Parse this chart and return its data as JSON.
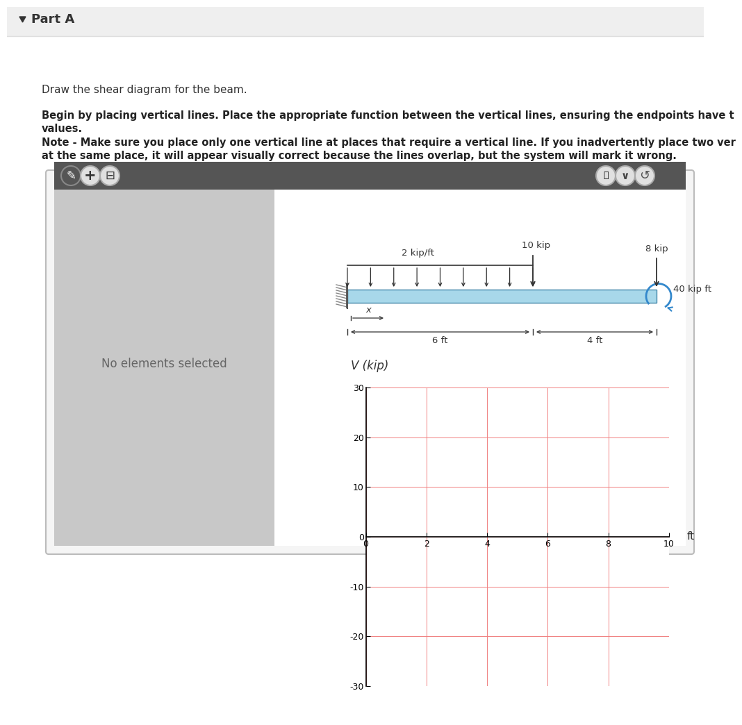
{
  "page_bg": "#ffffff",
  "header_bg": "#efefef",
  "toolbar_bg": "#555555",
  "panel_bg": "#cccccc",
  "part_a_text": "Part A",
  "instruction1": "Draw the shear diagram for the beam.",
  "beam_load_dist": "2 kip/ft",
  "beam_load_point1": "10 kip",
  "beam_load_point2": "8 kip",
  "beam_moment": "40 kip ft",
  "beam_length1": "6 ft",
  "beam_length2": "4 ft",
  "beam_x_label": "x",
  "plot_ylabel": "V (kip)",
  "plot_xlabel": "ft",
  "plot_xlim": [
    0,
    10
  ],
  "plot_ylim": [
    -30,
    30
  ],
  "plot_yticks": [
    -30,
    -20,
    -10,
    0,
    10,
    20,
    30
  ],
  "plot_xticks": [
    0,
    2,
    4,
    6,
    8,
    10
  ],
  "grid_color": "#f08080",
  "beam_color": "#a8d8ea",
  "no_elements_text": "No elements selected"
}
